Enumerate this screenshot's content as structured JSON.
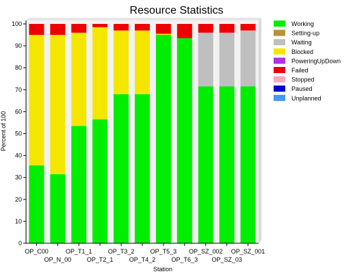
{
  "chart_data": {
    "type": "bar",
    "stacked": true,
    "title": "Resource Statistics",
    "xlabel": "Station",
    "ylabel": "Percent of 100",
    "ylim": [
      0,
      100
    ],
    "yticks": [
      0,
      10,
      20,
      30,
      40,
      50,
      60,
      70,
      80,
      90,
      100
    ],
    "grid": false,
    "legend_position": "right",
    "categories": [
      "OP_C00",
      "OP_N_00",
      "OP_T1_1",
      "OP_T2_1",
      "OP_T3_2",
      "OP_T4_2",
      "OP_T5_3",
      "OP_T6_3",
      "OP_SZ_002",
      "OP_SZ_03",
      "OP_SZ_001"
    ],
    "legend": [
      "Working",
      "Setting-up",
      "Waiting",
      "Blocked",
      "PoweringUpDown",
      "Failed",
      "Stopped",
      "Paused",
      "Unplanned"
    ],
    "colors": {
      "Working": "#00ee00",
      "Setting-up": "#b8913a",
      "Waiting": "#bfbfbf",
      "Blocked": "#f5e600",
      "PoweringUpDown": "#b42ee8",
      "Failed": "#ee0000",
      "Stopped": "#f7a8bd",
      "Paused": "#0000cc",
      "Unplanned": "#4499ee"
    },
    "series": [
      {
        "name": "Working",
        "values": [
          35.5,
          31.5,
          53.5,
          56.5,
          68,
          68,
          95,
          93.5,
          71.5,
          71.5,
          71.5
        ]
      },
      {
        "name": "Setting-up",
        "values": [
          0,
          0,
          0,
          0,
          0,
          0,
          0,
          0,
          0,
          0,
          0
        ]
      },
      {
        "name": "Waiting",
        "values": [
          0,
          0,
          0,
          0,
          0,
          0,
          0,
          0,
          24.5,
          24.5,
          25.5
        ]
      },
      {
        "name": "Blocked",
        "values": [
          59.5,
          63.5,
          42.5,
          42,
          29,
          29,
          0.5,
          0,
          0,
          0,
          0
        ]
      },
      {
        "name": "PoweringUpDown",
        "values": [
          0,
          0,
          0,
          0,
          0,
          0,
          0,
          0,
          0,
          0,
          0
        ]
      },
      {
        "name": "Failed",
        "values": [
          5,
          5,
          4,
          1.5,
          3,
          3,
          4.5,
          6.5,
          4,
          4,
          3
        ]
      },
      {
        "name": "Stopped",
        "values": [
          0,
          0,
          0,
          0,
          0,
          0,
          0,
          0,
          0,
          0,
          0
        ]
      },
      {
        "name": "Paused",
        "values": [
          0,
          0,
          0,
          0,
          0,
          0,
          0,
          0,
          0,
          0,
          0
        ]
      },
      {
        "name": "Unplanned",
        "values": [
          0,
          0,
          0,
          0,
          0,
          0,
          0,
          0,
          0,
          0,
          0
        ]
      }
    ]
  }
}
